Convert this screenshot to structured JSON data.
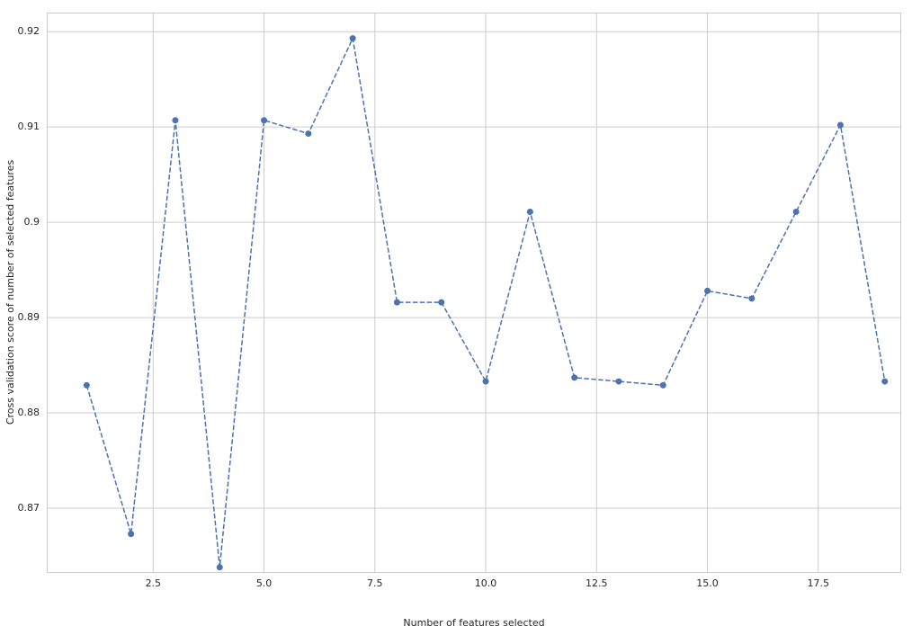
{
  "chart_data": {
    "type": "line",
    "xlabel": "Number of features selected",
    "ylabel": "Cross validation score of number of selected features",
    "x": [
      1,
      2,
      3,
      4,
      5,
      6,
      7,
      8,
      9,
      10,
      11,
      12,
      13,
      14,
      15,
      16,
      17,
      18,
      19
    ],
    "series": [
      {
        "color": "#4c72b0",
        "values": [
          0.8829,
          0.8673,
          0.9107,
          0.8638,
          0.9107,
          0.9093,
          0.9193,
          0.8916,
          0.8916,
          0.8833,
          0.9011,
          0.8837,
          0.8833,
          0.8829,
          0.8928,
          0.892,
          0.9011,
          0.9102,
          0.8833
        ]
      }
    ],
    "xlim": [
      0.1,
      19.35
    ],
    "ylim": [
      0.8633,
      0.922
    ],
    "xticks": [
      2.5,
      {
        "value": 5,
        "label": "5.0"
      },
      7.5,
      {
        "value": 10,
        "label": "10.0"
      },
      12.5,
      {
        "value": 15,
        "label": "15.0"
      },
      17.5
    ],
    "yticks": [
      0.87,
      0.88,
      0.89,
      0.9,
      0.91,
      0.92
    ],
    "grid": true,
    "line_style": "dashed",
    "markers": true
  }
}
